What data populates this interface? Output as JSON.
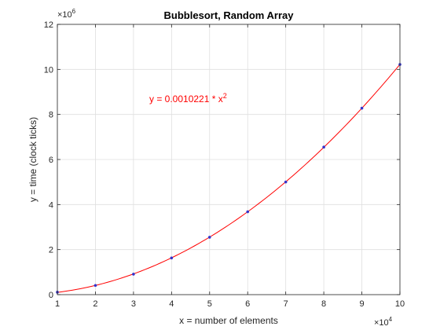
{
  "chart_data": {
    "type": "scatter",
    "title": "Bubblesort, Random Array",
    "xlabel": "x = number of elements",
    "ylabel": "y = time (clock ticks)",
    "xlim": [
      10000,
      100000
    ],
    "ylim": [
      0,
      12000000
    ],
    "x_ticks": [
      10000,
      20000,
      30000,
      40000,
      50000,
      60000,
      70000,
      80000,
      90000,
      100000
    ],
    "x_tick_labels": [
      "1",
      "2",
      "3",
      "4",
      "5",
      "6",
      "7",
      "8",
      "9",
      "10"
    ],
    "x_multiplier": {
      "base": "×10",
      "exp": "4"
    },
    "y_ticks": [
      0,
      2000000,
      4000000,
      6000000,
      8000000,
      10000000,
      12000000
    ],
    "y_tick_labels": [
      "0",
      "2",
      "4",
      "6",
      "8",
      "10",
      "12"
    ],
    "y_multiplier": {
      "base": "×10",
      "exp": "6"
    },
    "grid": true,
    "series": [
      {
        "x": [
          10000,
          20000,
          30000,
          40000,
          50000,
          60000,
          70000,
          80000,
          90000,
          100000
        ],
        "y": [
          110000,
          410000,
          910000,
          1630000,
          2550000,
          3680000,
          5000000,
          6550000,
          8280000,
          10220000
        ],
        "color": "#3333cc",
        "marker": "point"
      }
    ],
    "fit": {
      "coefficient": 0.0010221,
      "color": "#ff0000",
      "annotation_prefix": "y = 0.0010221 * x",
      "annotation_exp": "2"
    }
  }
}
